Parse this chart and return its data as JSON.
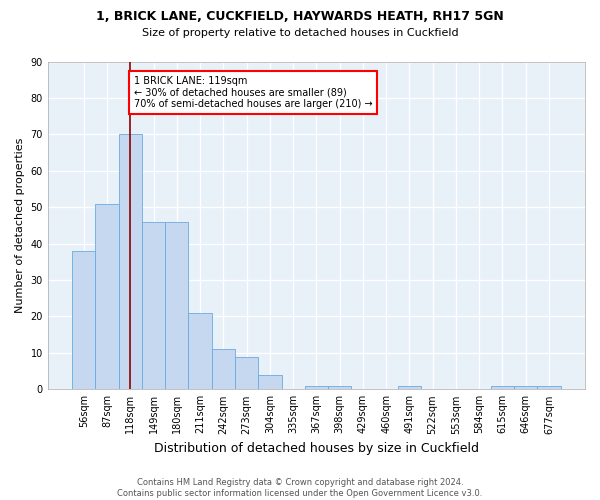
{
  "title1": "1, BRICK LANE, CUCKFIELD, HAYWARDS HEATH, RH17 5GN",
  "title2": "Size of property relative to detached houses in Cuckfield",
  "xlabel": "Distribution of detached houses by size in Cuckfield",
  "ylabel": "Number of detached properties",
  "bar_labels": [
    "56sqm",
    "87sqm",
    "118sqm",
    "149sqm",
    "180sqm",
    "211sqm",
    "242sqm",
    "273sqm",
    "304sqm",
    "335sqm",
    "367sqm",
    "398sqm",
    "429sqm",
    "460sqm",
    "491sqm",
    "522sqm",
    "553sqm",
    "584sqm",
    "615sqm",
    "646sqm",
    "677sqm"
  ],
  "bar_values": [
    38,
    51,
    70,
    46,
    46,
    21,
    11,
    9,
    4,
    0,
    1,
    1,
    0,
    0,
    1,
    0,
    0,
    0,
    1,
    1,
    1
  ],
  "bar_color": "#c5d8f0",
  "bar_edge_color": "#6aaae0",
  "property_line_x": 2,
  "annotation_text": "1 BRICK LANE: 119sqm\n← 30% of detached houses are smaller (89)\n70% of semi-detached houses are larger (210) →",
  "annotation_box_color": "white",
  "annotation_box_edge_color": "red",
  "vline_color": "#8b0000",
  "ylim": [
    0,
    90
  ],
  "yticks": [
    0,
    10,
    20,
    30,
    40,
    50,
    60,
    70,
    80,
    90
  ],
  "footer": "Contains HM Land Registry data © Crown copyright and database right 2024.\nContains public sector information licensed under the Open Government Licence v3.0.",
  "bg_color": "#ffffff",
  "plot_bg_color": "#e8f0f8",
  "grid_color": "#ffffff",
  "title1_fontsize": 9,
  "title2_fontsize": 8,
  "xlabel_fontsize": 9,
  "ylabel_fontsize": 8,
  "tick_fontsize": 7,
  "footer_fontsize": 6,
  "annotation_fontsize": 7
}
